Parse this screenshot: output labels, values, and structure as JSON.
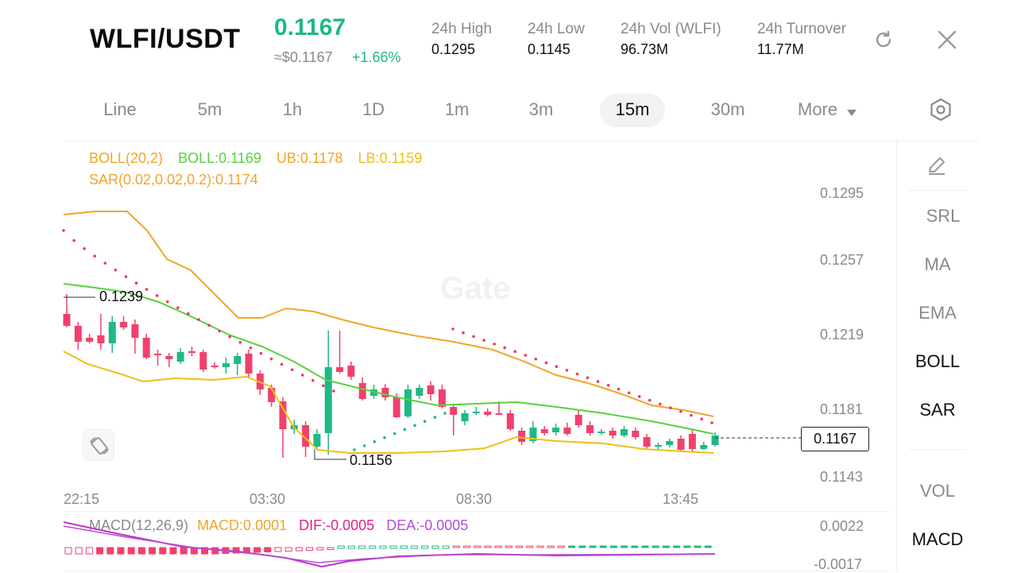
{
  "header": {
    "pair": "WLFI/USDT",
    "price": "0.1167",
    "approx": "≈$0.1167",
    "change": "+1.66%",
    "stats": [
      {
        "label": "24h  High",
        "value": "0.1295"
      },
      {
        "label": "24h  Low",
        "value": "0.1145"
      },
      {
        "label": "24h  Vol (WLFI)",
        "value": "96.73M"
      },
      {
        "label": "24h  Turnover",
        "value": "11.77M"
      }
    ]
  },
  "timeframes": [
    "Line",
    "5m",
    "1h",
    "1D",
    "1m",
    "3m",
    "15m",
    "30m",
    "More"
  ],
  "active_timeframe": "15m",
  "indicators": {
    "boll_name": "BOLL(20,2)",
    "boll_mid": "BOLL:0.1169",
    "boll_ub": "UB:0.1178",
    "boll_lb": "LB:0.1159",
    "sar": "SAR(0.02,0.02,0.2):0.1174",
    "macd_name": "MACD(12,26,9)",
    "macd_val": "MACD:0.0001",
    "dif": "DIF:-0.0005",
    "dea": "DEA:-0.0005"
  },
  "sidebar": [
    "SRL",
    "MA",
    "EMA",
    "BOLL",
    "SAR",
    "VOL",
    "MACD"
  ],
  "sidebar_active": [
    "BOLL",
    "SAR",
    "MACD"
  ],
  "y_axis": [
    "0.1295",
    "0.1257",
    "0.1219",
    "0.1181",
    "0.1143"
  ],
  "x_axis": [
    "22:15",
    "03:30",
    "08:30",
    "13:45"
  ],
  "macd_axis": [
    "0.0022",
    "-0.0017"
  ],
  "markers": {
    "high": "0.1239",
    "low": "0.1156",
    "current": "0.1167"
  },
  "watermark": "Gate",
  "colors": {
    "up": "#1fb886",
    "down": "#f0416c",
    "boll_mid": "#58d23c",
    "boll_band": "#f0a528",
    "sar": "#ea3a62",
    "macd_dif": "#c033c3",
    "dea": "#b34ed8"
  }
}
